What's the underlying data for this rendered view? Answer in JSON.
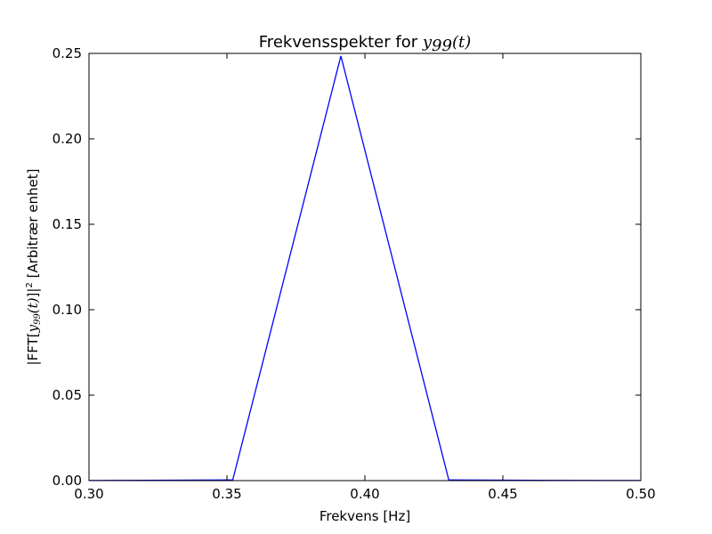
{
  "chart_data": {
    "type": "line",
    "title": {
      "text": "Frekvensspekter for ",
      "math_base": "y",
      "math_sub": "99",
      "math_arg": "(t)"
    },
    "xlabel": "Frekvens [Hz]",
    "ylabel": {
      "prefix": "|FFT[",
      "math_base": "y",
      "math_sub": "99",
      "math_arg": "(t)",
      "suffix_mid": "]|",
      "suffix_sup": "2",
      "suffix_end": " [Arbitrær enhet]"
    },
    "xlim": [
      0.3,
      0.5
    ],
    "ylim": [
      0.0,
      0.25
    ],
    "xticks": [
      "0.30",
      "0.35",
      "0.40",
      "0.45",
      "0.50"
    ],
    "yticks": [
      "0.00",
      "0.05",
      "0.10",
      "0.15",
      "0.20",
      "0.25"
    ],
    "grid": false,
    "series": [
      {
        "color": "#0000ff",
        "x": [
          0.2739,
          0.313,
          0.3521,
          0.3913,
          0.4304,
          0.4696,
          0.5087
        ],
        "y": [
          0.0,
          0.0001,
          0.0004,
          0.2485,
          0.0004,
          0.0001,
          0.0
        ]
      }
    ]
  }
}
